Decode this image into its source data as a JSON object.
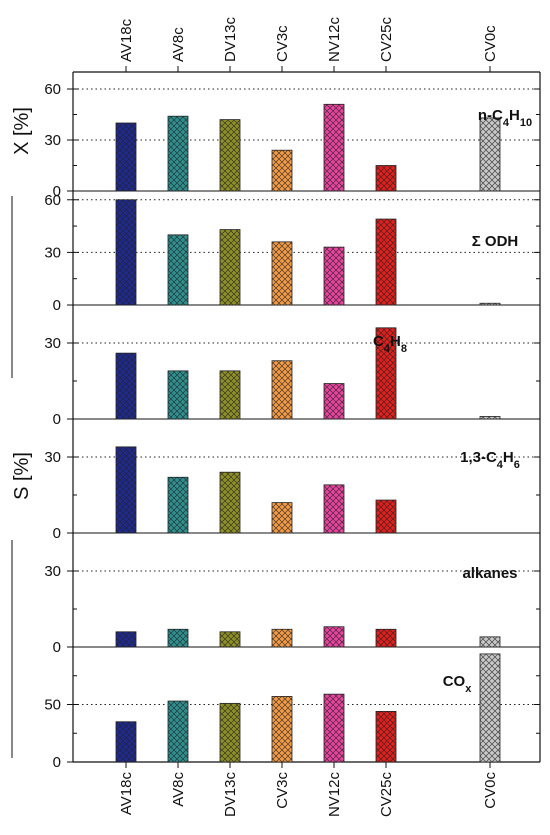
{
  "chart_data": {
    "type": "bar",
    "categories": [
      "AV18c",
      "AV8c",
      "DV13c",
      "CV3c",
      "NV12c",
      "CV25c",
      "CV0c"
    ],
    "colors": {
      "AV18c": "#1f2a8f",
      "AV8c": "#2f8f8f",
      "DV13c": "#8f8f28",
      "CV3c": "#f29a45",
      "NV12c": "#e8439f",
      "CV25c": "#e0201e",
      "CV0c": "#c8c8c8"
    },
    "pattern": "crosshatch",
    "ylabels": [
      {
        "text": "X [%]",
        "panels": [
          0
        ]
      },
      {
        "text": "S [%]",
        "panels": [
          1,
          2,
          3,
          4,
          5
        ]
      }
    ],
    "panels": [
      {
        "label_parts": [
          [
            "n-C",
            "n"
          ],
          [
            "4",
            "sub"
          ],
          [
            "H",
            "n"
          ],
          [
            "10",
            "sub"
          ]
        ],
        "ylim": [
          0,
          70
        ],
        "yticks": [
          0,
          30,
          60
        ],
        "grid": [
          30,
          60
        ],
        "values": [
          40,
          44,
          42,
          24,
          51,
          15,
          43
        ]
      },
      {
        "label_parts": [
          [
            "Σ ODH",
            "n"
          ]
        ],
        "ylim": [
          0,
          65
        ],
        "yticks": [
          0,
          30,
          60
        ],
        "grid": [
          30,
          60
        ],
        "values": [
          60,
          40,
          43,
          36,
          33,
          49,
          1
        ]
      },
      {
        "label_parts": [
          [
            "C",
            "n"
          ],
          [
            "4",
            "sub"
          ],
          [
            "H",
            "n"
          ],
          [
            "8",
            "sub"
          ]
        ],
        "ylim": [
          0,
          45
        ],
        "yticks": [
          0,
          30
        ],
        "grid": [
          30
        ],
        "values": [
          26,
          19,
          19,
          23,
          14,
          36,
          1
        ]
      },
      {
        "label_parts": [
          [
            "1,3-C",
            "n"
          ],
          [
            "4",
            "sub"
          ],
          [
            "H",
            "n"
          ],
          [
            "6",
            "sub"
          ]
        ],
        "ylim": [
          0,
          45
        ],
        "yticks": [
          0,
          30
        ],
        "grid": [
          30
        ],
        "values": [
          34,
          22,
          24,
          12,
          19,
          13,
          null
        ]
      },
      {
        "label_parts": [
          [
            "alkanes",
            "n"
          ]
        ],
        "ylim": [
          0,
          45
        ],
        "yticks": [
          0,
          30
        ],
        "grid": [
          30
        ],
        "values": [
          6,
          7,
          6,
          7,
          8,
          7,
          4
        ]
      },
      {
        "label_parts": [
          [
            "CO",
            "n"
          ],
          [
            "x",
            "sub"
          ]
        ],
        "ylim": [
          0,
          100
        ],
        "yticks": [
          0,
          50
        ],
        "grid": [
          50
        ],
        "values": [
          35,
          53,
          51,
          57,
          59,
          44,
          94
        ]
      }
    ]
  }
}
